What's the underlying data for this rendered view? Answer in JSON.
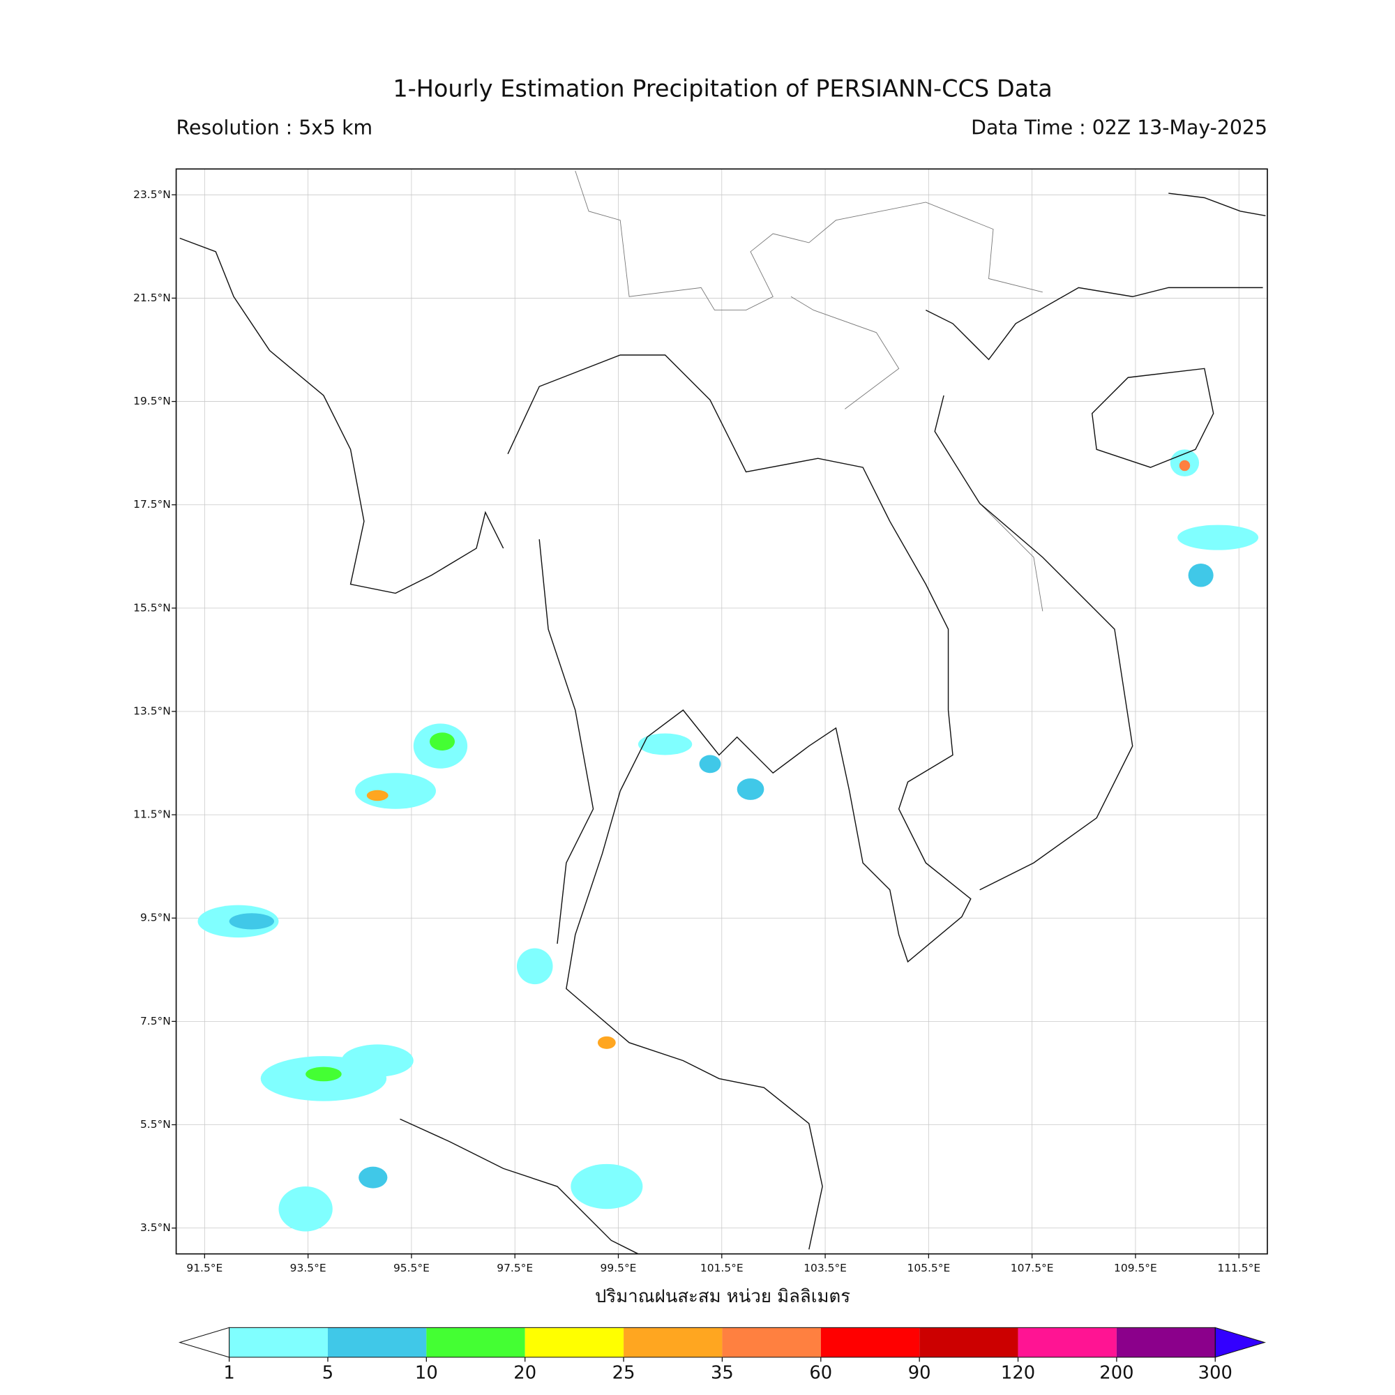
{
  "chart_data": {
    "type": "map",
    "title": "1-Hourly Estimation Precipitation of PERSIANN-CCS Data",
    "subtitle_left": "Resolution : 5x5 km",
    "subtitle_right": "Data Time : 02Z 13-May-2025",
    "xlabel": "ปริมาณฝนสะสม หน่วย มิลลิเมตร",
    "xlim": [
      90.95,
      112.05
    ],
    "ylim": [
      3.0,
      24.0
    ],
    "xticks": [
      {
        "value": 91.5,
        "label": "91.5°E"
      },
      {
        "value": 93.5,
        "label": "93.5°E"
      },
      {
        "value": 95.5,
        "label": "95.5°E"
      },
      {
        "value": 97.5,
        "label": "97.5°E"
      },
      {
        "value": 99.5,
        "label": "99.5°E"
      },
      {
        "value": 101.5,
        "label": "101.5°E"
      },
      {
        "value": 103.5,
        "label": "103.5°E"
      },
      {
        "value": 105.5,
        "label": "105.5°E"
      },
      {
        "value": 107.5,
        "label": "107.5°E"
      },
      {
        "value": 109.5,
        "label": "109.5°E"
      },
      {
        "value": 111.5,
        "label": "111.5°E"
      }
    ],
    "yticks": [
      {
        "value": 3.5,
        "label": "3.5°N"
      },
      {
        "value": 5.5,
        "label": "5.5°N"
      },
      {
        "value": 7.5,
        "label": "7.5°N"
      },
      {
        "value": 9.5,
        "label": "9.5°N"
      },
      {
        "value": 11.5,
        "label": "11.5°N"
      },
      {
        "value": 13.5,
        "label": "13.5°N"
      },
      {
        "value": 15.5,
        "label": "15.5°N"
      },
      {
        "value": 17.5,
        "label": "17.5°N"
      },
      {
        "value": 19.5,
        "label": "19.5°N"
      },
      {
        "value": 21.5,
        "label": "21.5°N"
      },
      {
        "value": 23.5,
        "label": "23.5°N"
      }
    ],
    "grid": true,
    "colorbar": {
      "levels": [
        1,
        5,
        10,
        20,
        25,
        35,
        60,
        90,
        120,
        200,
        300
      ],
      "colors": [
        "#80ffff",
        "#40c8e8",
        "#44ff33",
        "#ffff00",
        "#ffa620",
        "#ff8040",
        "#ff0000",
        "#cc0000",
        "#ff1493",
        "#8b008b"
      ],
      "under_color": "#ffffff",
      "over_color": "#3300ff"
    }
  }
}
